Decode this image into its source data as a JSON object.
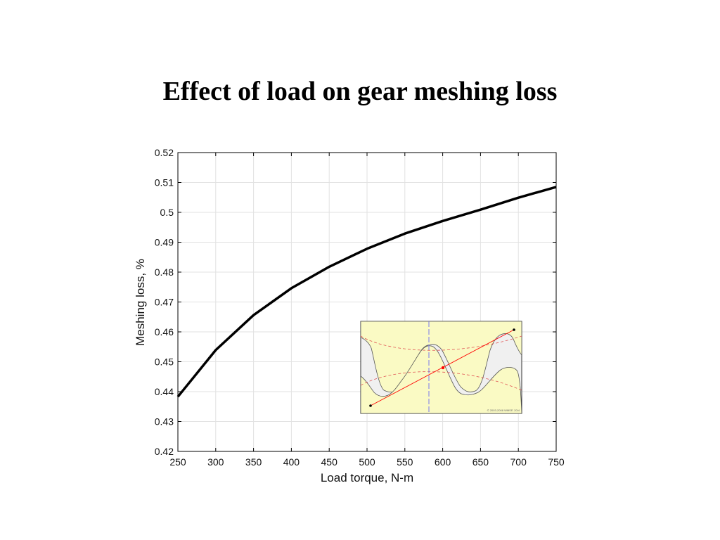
{
  "page": {
    "title": "Effect of load on gear meshing loss"
  },
  "chart_data": {
    "type": "line",
    "title": "Effect of load on gear meshing loss",
    "xlabel": "Load torque, N-m",
    "ylabel": "Meshing loss, %",
    "xlim": [
      250,
      750
    ],
    "ylim": [
      0.42,
      0.52
    ],
    "xticks": [
      250,
      300,
      350,
      400,
      450,
      500,
      550,
      600,
      650,
      700,
      750
    ],
    "yticks": [
      0.42,
      0.43,
      0.44,
      0.45,
      0.46,
      0.47,
      0.48,
      0.49,
      0.5,
      0.51,
      0.52
    ],
    "xtick_labels": [
      "250",
      "300",
      "350",
      "400",
      "450",
      "500",
      "550",
      "600",
      "650",
      "700",
      "750"
    ],
    "ytick_labels": [
      "0.42",
      "0.43",
      "0.44",
      "0.45",
      "0.46",
      "0.47",
      "0.48",
      "0.49",
      "0.5",
      "0.51",
      "0.52"
    ],
    "grid": true,
    "series": [
      {
        "color": "#000000",
        "x": [
          250,
          300,
          350,
          400,
          450,
          500,
          550,
          600,
          650,
          700,
          750
        ],
        "y": [
          0.4383,
          0.4539,
          0.4656,
          0.4746,
          0.4818,
          0.4878,
          0.4929,
          0.4971,
          0.5009,
          0.5049,
          0.5085
        ]
      }
    ]
  },
  "inset": {
    "description_visible_text": "© 2003-2008 WMSP, 20/4",
    "background_color": "#fafac4",
    "line_of_action_color": "#ff0000",
    "pitch_line_color": "#7777ee"
  }
}
